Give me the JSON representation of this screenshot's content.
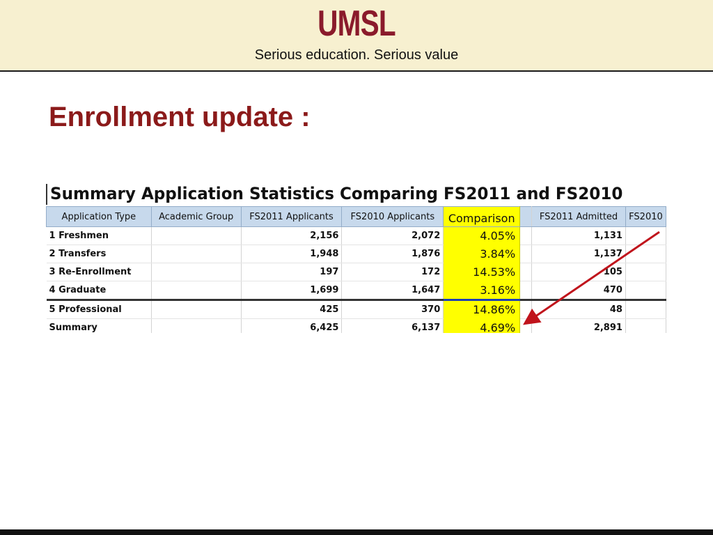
{
  "header": {
    "logo_text": "UMSL",
    "tagline": "Serious education. Serious value"
  },
  "slide": {
    "title": "Enrollment update :"
  },
  "report": {
    "title": "Summary Application Statistics Comparing FS2011 and FS2010",
    "columns": [
      "Application Type",
      "Academic Group",
      "FS2011 Applicants",
      "FS2010 Applicants",
      "Comparison",
      "",
      "FS2011 Admitted",
      "FS2010"
    ],
    "rows": [
      {
        "type": "1 Freshmen",
        "group": "",
        "fs2011_app": "2,156",
        "fs2010_app": "2,072",
        "comparison": "4.05%",
        "fs2011_adm": "1,131"
      },
      {
        "type": "2 Transfers",
        "group": "",
        "fs2011_app": "1,948",
        "fs2010_app": "1,876",
        "comparison": "3.84%",
        "fs2011_adm": "1,137"
      },
      {
        "type": "3 Re-Enrollment",
        "group": "",
        "fs2011_app": "197",
        "fs2010_app": "172",
        "comparison": "14.53%",
        "fs2011_adm": "105"
      },
      {
        "type": "4 Graduate",
        "group": "",
        "fs2011_app": "1,699",
        "fs2010_app": "1,647",
        "comparison": "3.16%",
        "fs2011_adm": "470"
      },
      {
        "type": "5 Professional",
        "group": "",
        "fs2011_app": "425",
        "fs2010_app": "370",
        "comparison": "14.86%",
        "fs2011_adm": "48"
      },
      {
        "type": "Summary",
        "group": "",
        "fs2011_app": "6,425",
        "fs2010_app": "6,137",
        "comparison": "4.69%",
        "fs2011_adm": "2,891"
      }
    ],
    "highlight_color": "#ffff00",
    "arrow_color": "#c0141c"
  },
  "colors": {
    "header_bg": "#f7f0d0",
    "brand": "#8a1a2b",
    "title": "#8b1a1a",
    "table_header_bg": "#c7d9ec"
  }
}
